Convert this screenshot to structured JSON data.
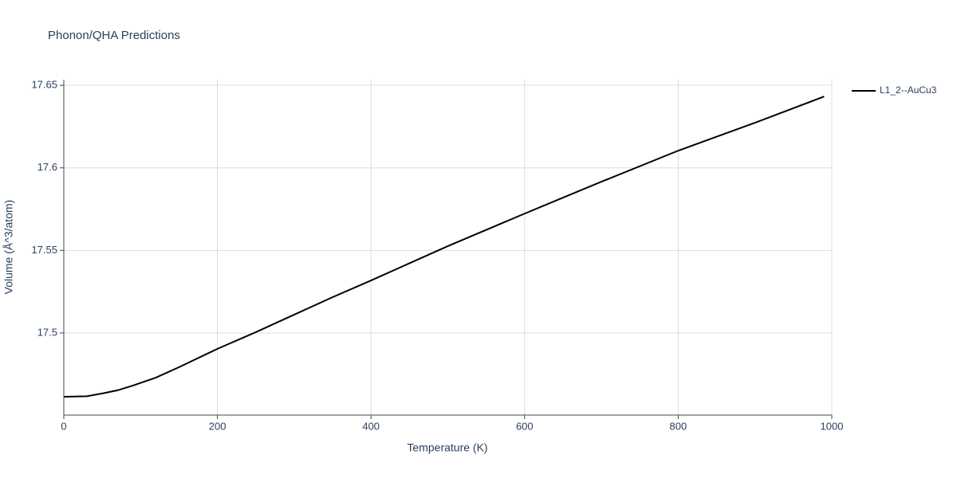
{
  "chart_data": {
    "type": "line",
    "title": "Phonon/QHA Predictions",
    "x_label": "Temperature (K)",
    "y_label": "Volume (Å^3/atom)",
    "x": [
      0,
      30,
      50,
      70,
      90,
      120,
      150,
      200,
      250,
      300,
      350,
      400,
      500,
      600,
      700,
      800,
      900,
      990
    ],
    "series": [
      {
        "name": "L1_2--AuCu3",
        "color": "#000000",
        "values": [
          17.4614,
          17.4617,
          17.4634,
          17.4653,
          17.4682,
          17.473,
          17.4793,
          17.4904,
          17.5005,
          17.5111,
          17.5217,
          17.5318,
          17.5526,
          17.5723,
          17.5916,
          17.6104,
          17.6273,
          17.6432
        ]
      }
    ],
    "xlim": [
      0,
      1000
    ],
    "xticks": [
      0,
      200,
      400,
      600,
      800,
      1000
    ],
    "ylim": [
      17.4503,
      17.6534
    ],
    "yticks": [
      17.5,
      17.55,
      17.6,
      17.65
    ],
    "grid": true,
    "legend": "top-right"
  }
}
